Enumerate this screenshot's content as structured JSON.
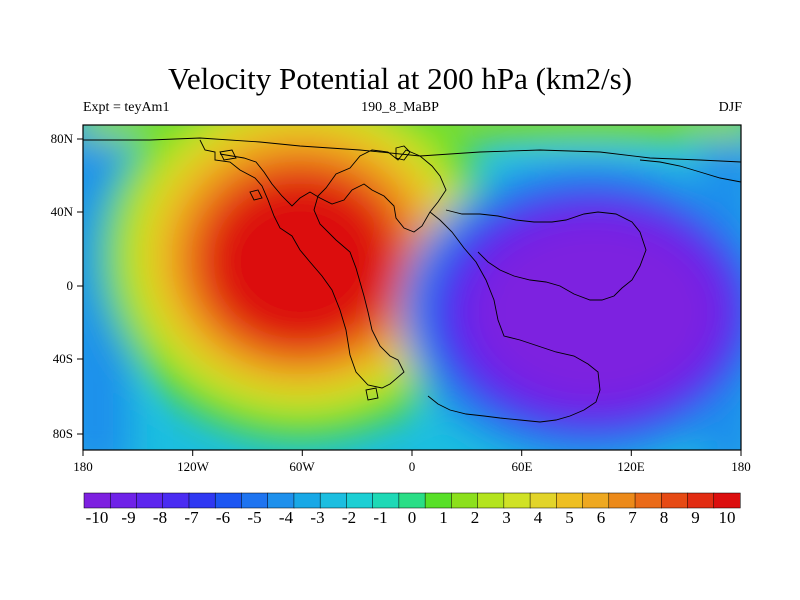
{
  "title": "Velocity Potential at 200 hPa (km2/s)",
  "subtitle_left": "Expt = teyAm1",
  "subtitle_center": "190_8_MaBP",
  "subtitle_right": "DJF",
  "lon_ticks": [
    "180",
    "120W",
    "60W",
    "0",
    "60E",
    "120E",
    "180"
  ],
  "lat_ticks": [
    "80N",
    "40N",
    "0",
    "40S",
    "80S"
  ],
  "colorbar_labels": [
    "-10",
    "-9",
    "-8",
    "-7",
    "-6",
    "-5",
    "-4",
    "-3",
    "-2",
    "-1",
    "0",
    "1",
    "2",
    "3",
    "4",
    "5",
    "6",
    "7",
    "8",
    "9",
    "10"
  ],
  "colorbar_colors": [
    "#7d20e0",
    "#6f22e8",
    "#5d26ee",
    "#4a2cf2",
    "#2f38f2",
    "#1c56f2",
    "#1e74f0",
    "#1e90ec",
    "#18a8e6",
    "#1cbee0",
    "#1ccfd4",
    "#1ed9b6",
    "#2ade86",
    "#58e028",
    "#8ce01c",
    "#b4e41e",
    "#d0e226",
    "#e2d42a",
    "#eebf22",
    "#eea820",
    "#ec8a1a",
    "#ea6a18",
    "#e64a14",
    "#e22c12",
    "#dc0e0e"
  ],
  "chart_data": {
    "type": "heatmap",
    "title": "Velocity Potential at 200 hPa (km2/s)",
    "projection": "cylindrical-equidistant",
    "lon_range": [
      -180,
      180
    ],
    "lat_range": [
      -90,
      90
    ],
    "levels": [
      -10,
      -9,
      -8,
      -7,
      -6,
      -5,
      -4,
      -3,
      -2,
      -1,
      0,
      1,
      2,
      3,
      4,
      5,
      6,
      7,
      8,
      9,
      10
    ],
    "features": [
      {
        "name": "positive-center",
        "lon": -60,
        "lat": 15,
        "value": 11
      },
      {
        "name": "negative-center",
        "lon": 110,
        "lat": -10,
        "value": -11
      }
    ],
    "units": "km2/s"
  }
}
